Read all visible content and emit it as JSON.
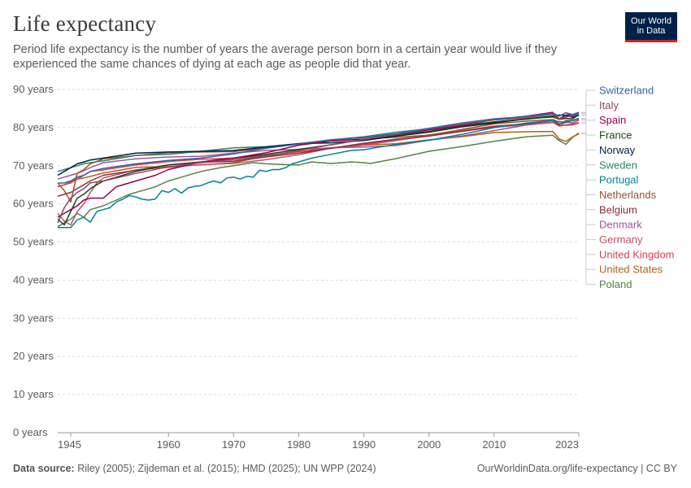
{
  "header": {
    "title": "Life expectancy",
    "subtitle": "Period life expectancy is the number of years the average person born in a certain year would live if they experienced the same chances of dying at each age as people did that year.",
    "logo_line1": "Our World",
    "logo_line2": "in Data"
  },
  "footer": {
    "source_label": "Data source:",
    "source_text": "Riley (2005); Zijdeman et al. (2015); HMD (2025); UN WPP (2024)",
    "link_text": "OurWorldinData.org/life-expectancy | CC BY"
  },
  "colors": {
    "brand": "#002147",
    "brand_accent": "#ce261e",
    "grid": "#dddddd",
    "text": "#5b5b5b"
  },
  "chart_data": {
    "type": "line",
    "title": "Life expectancy",
    "xlabel": "",
    "ylabel": "",
    "xlim": [
      1943,
      2023
    ],
    "ylim": [
      0,
      90
    ],
    "x_ticks": [
      1945,
      1960,
      1970,
      1980,
      1990,
      2000,
      2010,
      2023
    ],
    "y_ticks": [
      0,
      10,
      20,
      30,
      40,
      50,
      60,
      70,
      80,
      90
    ],
    "y_tick_suffix": " years",
    "grid": "horizontal dashed",
    "legend": "right, labels ordered by 2023 value",
    "series": [
      {
        "name": "Switzerland",
        "color": "#3360a9",
        "x": [
          1943,
          1944,
          1945,
          1946,
          1947,
          1948,
          1950,
          1955,
          1960,
          1965,
          1970,
          1975,
          1980,
          1985,
          1990,
          1995,
          2000,
          2005,
          2010,
          2015,
          2019,
          2020,
          2021,
          2022,
          2023
        ],
        "y": [
          65.4,
          65.5,
          66.0,
          67.0,
          67.5,
          68.5,
          69.3,
          70.5,
          71.4,
          72.0,
          73.1,
          74.6,
          75.7,
          76.8,
          77.4,
          78.4,
          79.8,
          81.2,
          82.3,
          82.9,
          83.8,
          83.0,
          83.9,
          83.4,
          84.0
        ]
      },
      {
        "name": "Italy",
        "color": "#8c4569",
        "x": [
          1943,
          1944,
          1945,
          1946,
          1947,
          1948,
          1950,
          1955,
          1960,
          1965,
          1970,
          1975,
          1980,
          1985,
          1990,
          1995,
          2000,
          2005,
          2010,
          2015,
          2019,
          2020,
          2021,
          2022,
          2023
        ],
        "y": [
          55.0,
          59.0,
          61.5,
          63.0,
          64.0,
          65.5,
          66.0,
          68.0,
          69.7,
          70.8,
          71.6,
          72.5,
          74.0,
          75.5,
          76.9,
          78.2,
          79.7,
          80.9,
          82.0,
          82.6,
          83.5,
          82.3,
          82.8,
          83.0,
          83.7
        ]
      },
      {
        "name": "Spain",
        "color": "#970046",
        "x": [
          1943,
          1944,
          1945,
          1946,
          1947,
          1948,
          1949,
          1950,
          1952,
          1955,
          1958,
          1960,
          1965,
          1970,
          1975,
          1980,
          1985,
          1990,
          1995,
          2000,
          2005,
          2010,
          2015,
          2019,
          2020,
          2021,
          2022,
          2023
        ],
        "y": [
          56.5,
          57.5,
          58.5,
          59.5,
          61.0,
          61.5,
          61.5,
          61.5,
          64.5,
          66.0,
          67.5,
          69.0,
          71.0,
          72.0,
          73.4,
          75.4,
          76.5,
          77.0,
          78.2,
          79.4,
          80.5,
          82.1,
          83.0,
          84.0,
          82.3,
          83.3,
          83.4,
          83.9
        ]
      },
      {
        "name": "France",
        "color": "#18470f",
        "x": [
          1943,
          1944,
          1945,
          1946,
          1947,
          1948,
          1950,
          1955,
          1960,
          1965,
          1970,
          1975,
          1980,
          1985,
          1990,
          1995,
          2000,
          2005,
          2010,
          2015,
          2019,
          2020,
          2021,
          2022,
          2023
        ],
        "y": [
          56.0,
          54.5,
          58.0,
          61.5,
          62.5,
          64.0,
          66.0,
          68.5,
          70.2,
          71.0,
          72.0,
          73.0,
          74.3,
          75.5,
          76.9,
          78.0,
          79.0,
          80.3,
          81.5,
          82.3,
          82.8,
          82.2,
          82.4,
          82.3,
          83.3
        ]
      },
      {
        "name": "Norway",
        "color": "#002147",
        "x": [
          1943,
          1944,
          1945,
          1946,
          1947,
          1948,
          1950,
          1955,
          1960,
          1965,
          1970,
          1975,
          1980,
          1985,
          1990,
          1995,
          2000,
          2005,
          2010,
          2015,
          2019,
          2020,
          2021,
          2022,
          2023
        ],
        "y": [
          67.5,
          68.5,
          69.5,
          70.5,
          71.0,
          71.5,
          72.0,
          73.3,
          73.6,
          73.8,
          74.0,
          74.9,
          75.8,
          76.0,
          76.6,
          77.8,
          78.8,
          80.2,
          81.2,
          82.3,
          83.0,
          83.3,
          83.2,
          82.7,
          83.2
        ]
      },
      {
        "name": "Sweden",
        "color": "#2c8465",
        "x": [
          1943,
          1944,
          1945,
          1946,
          1947,
          1948,
          1950,
          1955,
          1960,
          1965,
          1970,
          1975,
          1980,
          1985,
          1990,
          1995,
          2000,
          2005,
          2010,
          2015,
          2019,
          2020,
          2021,
          2022,
          2023
        ],
        "y": [
          68.5,
          69.0,
          69.5,
          70.0,
          70.5,
          70.8,
          71.3,
          72.7,
          73.0,
          73.8,
          74.7,
          75.0,
          75.8,
          76.8,
          77.6,
          78.8,
          79.7,
          80.6,
          81.5,
          82.2,
          83.0,
          82.2,
          83.1,
          83.1,
          83.3
        ]
      },
      {
        "name": "Portugal",
        "color": "#008393",
        "x": [
          1943,
          1944,
          1945,
          1946,
          1947,
          1948,
          1949,
          1950,
          1951,
          1952,
          1953,
          1954,
          1955,
          1956,
          1957,
          1958,
          1959,
          1960,
          1961,
          1962,
          1963,
          1964,
          1965,
          1966,
          1967,
          1968,
          1969,
          1970,
          1971,
          1972,
          1973,
          1974,
          1975,
          1976,
          1977,
          1978,
          1979,
          1980,
          1982,
          1985,
          1988,
          1990,
          1992,
          1995,
          2000,
          2005,
          2010,
          2015,
          2019,
          2020,
          2021,
          2022,
          2023
        ],
        "y": [
          53.8,
          53.8,
          53.8,
          55.8,
          56.5,
          55.2,
          58.0,
          58.5,
          59.0,
          60.5,
          61.2,
          62.2,
          61.8,
          61.2,
          61.0,
          61.3,
          63.5,
          63.0,
          64.0,
          62.8,
          64.2,
          64.6,
          64.8,
          65.5,
          66.0,
          65.5,
          66.8,
          67.0,
          66.5,
          67.2,
          67.0,
          68.8,
          68.5,
          69.0,
          69.0,
          69.5,
          70.5,
          71.0,
          72.0,
          73.0,
          74.0,
          74.2,
          74.8,
          75.6,
          76.7,
          78.2,
          80.0,
          81.2,
          81.9,
          81.0,
          81.3,
          81.9,
          82.4
        ]
      },
      {
        "name": "Netherlands",
        "color": "#9a5129",
        "x": [
          1943,
          1944,
          1945,
          1946,
          1947,
          1948,
          1950,
          1955,
          1960,
          1965,
          1970,
          1975,
          1980,
          1985,
          1990,
          1995,
          2000,
          2005,
          2010,
          2015,
          2019,
          2020,
          2021,
          2022,
          2023
        ],
        "y": [
          65.5,
          63.5,
          60.5,
          68.0,
          69.0,
          70.5,
          71.8,
          72.7,
          73.4,
          73.6,
          73.7,
          74.6,
          75.8,
          76.5,
          77.0,
          77.5,
          78.0,
          79.5,
          81.0,
          81.7,
          82.1,
          81.5,
          81.5,
          81.8,
          82.2
        ]
      },
      {
        "name": "Belgium",
        "color": "#883039",
        "x": [
          1943,
          1944,
          1945,
          1946,
          1947,
          1948,
          1950,
          1955,
          1960,
          1965,
          1970,
          1975,
          1980,
          1985,
          1990,
          1995,
          2000,
          2005,
          2010,
          2015,
          2019,
          2020,
          2021,
          2022,
          2023
        ],
        "y": [
          62.0,
          62.5,
          63.0,
          64.0,
          65.0,
          66.0,
          67.5,
          68.8,
          70.2,
          70.9,
          71.2,
          72.3,
          73.3,
          74.6,
          75.9,
          77.0,
          77.8,
          79.0,
          80.2,
          81.0,
          81.9,
          80.7,
          81.8,
          81.9,
          82.3
        ]
      },
      {
        "name": "Denmark",
        "color": "#a2559c",
        "x": [
          1943,
          1944,
          1945,
          1946,
          1947,
          1948,
          1950,
          1955,
          1960,
          1965,
          1970,
          1975,
          1980,
          1985,
          1990,
          1995,
          2000,
          2005,
          2010,
          2015,
          2019,
          2020,
          2021,
          2022,
          2023
        ],
        "y": [
          66.5,
          67.0,
          67.5,
          68.0,
          68.7,
          69.5,
          70.8,
          71.8,
          72.3,
          72.5,
          73.3,
          74.0,
          74.3,
          74.7,
          74.9,
          75.3,
          76.7,
          77.8,
          79.2,
          80.7,
          81.5,
          81.6,
          81.4,
          81.3,
          81.9
        ]
      },
      {
        "name": "Germany",
        "color": "#c15065",
        "x": [
          1943,
          1944,
          1945,
          1946,
          1947,
          1948,
          1949,
          1950,
          1955,
          1960,
          1965,
          1970,
          1975,
          1980,
          1985,
          1990,
          1995,
          2000,
          2005,
          2010,
          2015,
          2019,
          2020,
          2021,
          2022,
          2023
        ],
        "y": [
          57.5,
          55.5,
          54.5,
          58.0,
          60.0,
          63.0,
          65.5,
          66.8,
          68.9,
          69.6,
          70.3,
          70.6,
          71.6,
          72.9,
          74.6,
          75.4,
          76.6,
          78.1,
          79.2,
          80.1,
          80.7,
          81.3,
          81.0,
          80.6,
          80.7,
          81.2
        ]
      },
      {
        "name": "United Kingdom",
        "color": "#d73c50",
        "x": [
          1943,
          1944,
          1945,
          1946,
          1947,
          1948,
          1950,
          1955,
          1960,
          1965,
          1970,
          1975,
          1980,
          1985,
          1990,
          1995,
          2000,
          2005,
          2010,
          2015,
          2019,
          2020,
          2021,
          2022,
          2023
        ],
        "y": [
          64.5,
          65.0,
          65.5,
          66.5,
          67.5,
          68.5,
          68.9,
          70.2,
          71.1,
          71.7,
          72.0,
          72.7,
          73.7,
          74.6,
          75.7,
          76.7,
          77.8,
          79.2,
          80.4,
          81.0,
          81.4,
          80.4,
          80.7,
          81.0,
          81.3
        ]
      },
      {
        "name": "United States",
        "color": "#b16214",
        "x": [
          1943,
          1944,
          1945,
          1946,
          1947,
          1948,
          1950,
          1955,
          1960,
          1965,
          1970,
          1975,
          1980,
          1985,
          1990,
          1995,
          2000,
          2005,
          2010,
          2015,
          2019,
          2020,
          2021,
          2022,
          2023
        ],
        "y": [
          64.5,
          65.0,
          65.8,
          66.5,
          66.8,
          67.2,
          68.1,
          69.6,
          69.8,
          70.2,
          70.8,
          72.6,
          73.7,
          74.7,
          75.4,
          75.8,
          76.8,
          77.6,
          78.7,
          78.9,
          79.0,
          77.0,
          76.4,
          77.5,
          78.4
        ]
      },
      {
        "name": "Poland",
        "color": "#578145",
        "x": [
          1943,
          1944,
          1945,
          1946,
          1947,
          1948,
          1949,
          1950,
          1952,
          1954,
          1955,
          1956,
          1958,
          1960,
          1962,
          1965,
          1968,
          1970,
          1973,
          1975,
          1978,
          1980,
          1982,
          1985,
          1988,
          1990,
          1991,
          1995,
          2000,
          2005,
          2010,
          2015,
          2019,
          2020,
          2021,
          2022,
          2023
        ],
        "y": [
          54.0,
          55.0,
          56.0,
          57.5,
          56.5,
          58.5,
          59.0,
          59.5,
          61.0,
          62.5,
          63.0,
          63.5,
          64.5,
          66.0,
          67.0,
          68.5,
          69.5,
          70.0,
          70.8,
          70.5,
          70.3,
          70.2,
          71.0,
          70.6,
          71.0,
          70.8,
          70.6,
          71.9,
          73.8,
          75.0,
          76.4,
          77.6,
          78.0,
          76.6,
          75.6,
          77.4,
          78.6
        ]
      }
    ]
  }
}
